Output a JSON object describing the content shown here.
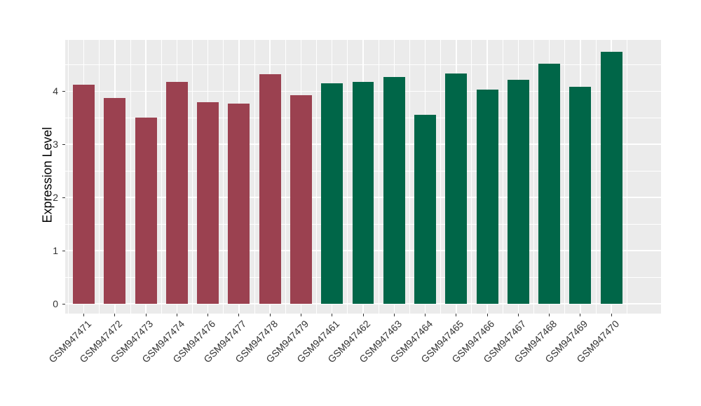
{
  "figure": {
    "background_color": "#FFFFFF",
    "panel_background_color": "#EBEBEB",
    "gridline_color": "#FFFFFF",
    "tick_mark_color": "#333333",
    "axis_text_color": "#333333",
    "axis_title_color": "#000000"
  },
  "chart_data": {
    "type": "bar",
    "title": "",
    "xlabel": "",
    "ylabel": "Expression Level",
    "ylim": [
      -0.2,
      4.97
    ],
    "yticks": [
      0,
      1,
      2,
      3,
      4
    ],
    "grid": "white major+minor gridlines on gray panel",
    "legend_position": "none",
    "x_tick_label_angle": 45,
    "group_colors": {
      "group1": "#9B4150",
      "group2": "#006648"
    },
    "bars": [
      {
        "label": "GSM947471",
        "value": 4.13,
        "group": "group1"
      },
      {
        "label": "GSM947472",
        "value": 3.88,
        "group": "group1"
      },
      {
        "label": "GSM947473",
        "value": 3.51,
        "group": "group1"
      },
      {
        "label": "GSM947474",
        "value": 4.18,
        "group": "group1"
      },
      {
        "label": "GSM947476",
        "value": 3.79,
        "group": "group1"
      },
      {
        "label": "GSM947477",
        "value": 3.77,
        "group": "group1"
      },
      {
        "label": "GSM947478",
        "value": 4.32,
        "group": "group1"
      },
      {
        "label": "GSM947479",
        "value": 3.93,
        "group": "group1"
      },
      {
        "label": "GSM947461",
        "value": 4.15,
        "group": "group2"
      },
      {
        "label": "GSM947462",
        "value": 4.17,
        "group": "group2"
      },
      {
        "label": "GSM947463",
        "value": 4.27,
        "group": "group2"
      },
      {
        "label": "GSM947464",
        "value": 3.56,
        "group": "group2"
      },
      {
        "label": "GSM947465",
        "value": 4.33,
        "group": "group2"
      },
      {
        "label": "GSM947466",
        "value": 4.03,
        "group": "group2"
      },
      {
        "label": "GSM947467",
        "value": 4.22,
        "group": "group2"
      },
      {
        "label": "GSM947468",
        "value": 4.52,
        "group": "group2"
      },
      {
        "label": "GSM947469",
        "value": 4.08,
        "group": "group2"
      },
      {
        "label": "GSM947470",
        "value": 4.74,
        "group": "group2"
      }
    ]
  }
}
